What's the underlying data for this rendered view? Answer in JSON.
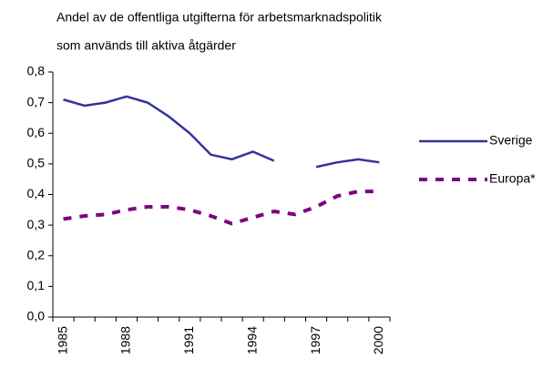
{
  "chart_data": {
    "type": "line",
    "title": "Andel av de offentliga utgifterna för arbetsmarknadspolitik",
    "subtitle": "som används till aktiva åtgärder",
    "categories": [
      "1985",
      null,
      null,
      "1988",
      null,
      null,
      "1991",
      null,
      null,
      "1994",
      null,
      null,
      "1997",
      null,
      null,
      "2000"
    ],
    "series": [
      {
        "name": "Sverige",
        "color": "#333399",
        "dash": false,
        "values": [
          0.71,
          0.69,
          0.7,
          0.72,
          0.7,
          0.655,
          0.6,
          0.53,
          0.515,
          0.54,
          0.51,
          null,
          0.49,
          0.505,
          0.515,
          0.505
        ]
      },
      {
        "name": "Europa*",
        "color": "#800080",
        "dash": true,
        "values": [
          0.32,
          0.33,
          0.335,
          0.35,
          0.36,
          0.36,
          0.35,
          0.33,
          0.305,
          0.325,
          0.345,
          0.335,
          0.36,
          0.395,
          0.41,
          0.41
        ]
      }
    ],
    "ylim": [
      0,
      0.8
    ],
    "yticks": [
      {
        "value": 0,
        "label": "0,0"
      },
      {
        "value": 0.1,
        "label": "0,1"
      },
      {
        "value": 0.2,
        "label": "0,2"
      },
      {
        "value": 0.3,
        "label": "0,3"
      },
      {
        "value": 0.4,
        "label": "0,4"
      },
      {
        "value": 0.5,
        "label": "0,5"
      },
      {
        "value": 0.6,
        "label": "0,6"
      },
      {
        "value": 0.7,
        "label": "0,7"
      },
      {
        "value": 0.8,
        "label": "0,8"
      }
    ],
    "grid": false,
    "legend": "right"
  }
}
